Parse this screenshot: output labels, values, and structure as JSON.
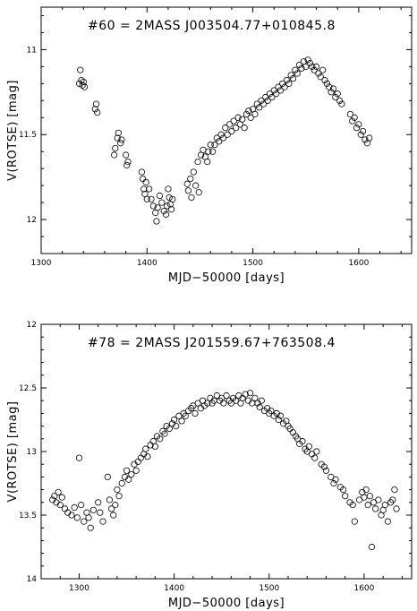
{
  "chart_data": [
    {
      "type": "scatter",
      "title": "#60  =  2MASS  J003504.77+010845.8",
      "xlabel": "MJD−50000  [days]",
      "ylabel": "V(ROTSE)  [mag]",
      "xlim": [
        1300,
        1650
      ],
      "ylim": [
        12.2,
        10.75
      ],
      "y_inverted": true,
      "xticks": [
        1300,
        1400,
        1500,
        1600
      ],
      "yticks": [
        11,
        11.5,
        12
      ],
      "ytick_labels": [
        "11",
        "11.5",
        "12"
      ],
      "marker": "open-circle",
      "points": [
        [
          1336,
          11.2
        ],
        [
          1337,
          11.12
        ],
        [
          1338,
          11.18
        ],
        [
          1339,
          11.21
        ],
        [
          1340,
          11.19
        ],
        [
          1341,
          11.22
        ],
        [
          1351,
          11.35
        ],
        [
          1352,
          11.32
        ],
        [
          1353,
          11.37
        ],
        [
          1369,
          11.62
        ],
        [
          1370,
          11.58
        ],
        [
          1372,
          11.52
        ],
        [
          1373,
          11.49
        ],
        [
          1375,
          11.55
        ],
        [
          1376,
          11.53
        ],
        [
          1380,
          11.62
        ],
        [
          1381,
          11.68
        ],
        [
          1382,
          11.66
        ],
        [
          1395,
          11.72
        ],
        [
          1396,
          11.76
        ],
        [
          1397,
          11.82
        ],
        [
          1398,
          11.85
        ],
        [
          1399,
          11.78
        ],
        [
          1400,
          11.88
        ],
        [
          1402,
          11.82
        ],
        [
          1404,
          11.88
        ],
        [
          1406,
          11.92
        ],
        [
          1408,
          11.96
        ],
        [
          1409,
          12.01
        ],
        [
          1410,
          11.93
        ],
        [
          1412,
          11.86
        ],
        [
          1414,
          11.9
        ],
        [
          1416,
          11.95
        ],
        [
          1418,
          11.97
        ],
        [
          1419,
          11.92
        ],
        [
          1420,
          11.82
        ],
        [
          1421,
          11.87
        ],
        [
          1422,
          11.91
        ],
        [
          1423,
          11.94
        ],
        [
          1424,
          11.88
        ],
        [
          1438,
          11.79
        ],
        [
          1439,
          11.83
        ],
        [
          1441,
          11.76
        ],
        [
          1442,
          11.87
        ],
        [
          1444,
          11.72
        ],
        [
          1446,
          11.8
        ],
        [
          1448,
          11.66
        ],
        [
          1449,
          11.84
        ],
        [
          1451,
          11.62
        ],
        [
          1453,
          11.59
        ],
        [
          1455,
          11.63
        ],
        [
          1457,
          11.66
        ],
        [
          1458,
          11.6
        ],
        [
          1460,
          11.56
        ],
        [
          1462,
          11.6
        ],
        [
          1464,
          11.56
        ],
        [
          1466,
          11.52
        ],
        [
          1468,
          11.54
        ],
        [
          1470,
          11.5
        ],
        [
          1472,
          11.52
        ],
        [
          1474,
          11.46
        ],
        [
          1476,
          11.5
        ],
        [
          1478,
          11.44
        ],
        [
          1480,
          11.48
        ],
        [
          1482,
          11.42
        ],
        [
          1484,
          11.46
        ],
        [
          1486,
          11.4
        ],
        [
          1488,
          11.44
        ],
        [
          1490,
          11.41
        ],
        [
          1492,
          11.46
        ],
        [
          1494,
          11.38
        ],
        [
          1496,
          11.36
        ],
        [
          1498,
          11.4
        ],
        [
          1500,
          11.35
        ],
        [
          1502,
          11.38
        ],
        [
          1504,
          11.32
        ],
        [
          1506,
          11.34
        ],
        [
          1508,
          11.3
        ],
        [
          1510,
          11.32
        ],
        [
          1512,
          11.28
        ],
        [
          1514,
          11.3
        ],
        [
          1516,
          11.26
        ],
        [
          1518,
          11.28
        ],
        [
          1520,
          11.24
        ],
        [
          1522,
          11.26
        ],
        [
          1524,
          11.22
        ],
        [
          1526,
          11.24
        ],
        [
          1528,
          11.2
        ],
        [
          1530,
          11.22
        ],
        [
          1532,
          11.18
        ],
        [
          1534,
          11.2
        ],
        [
          1536,
          11.15
        ],
        [
          1538,
          11.17
        ],
        [
          1540,
          11.12
        ],
        [
          1542,
          11.14
        ],
        [
          1544,
          11.09
        ],
        [
          1546,
          11.11
        ],
        [
          1548,
          11.07
        ],
        [
          1550,
          11.1
        ],
        [
          1552,
          11.06
        ],
        [
          1554,
          11.08
        ],
        [
          1556,
          11.1
        ],
        [
          1558,
          11.12
        ],
        [
          1560,
          11.1
        ],
        [
          1562,
          11.14
        ],
        [
          1564,
          11.16
        ],
        [
          1566,
          11.12
        ],
        [
          1568,
          11.18
        ],
        [
          1570,
          11.2
        ],
        [
          1572,
          11.22
        ],
        [
          1574,
          11.25
        ],
        [
          1576,
          11.23
        ],
        [
          1578,
          11.28
        ],
        [
          1580,
          11.26
        ],
        [
          1582,
          11.3
        ],
        [
          1584,
          11.32
        ],
        [
          1592,
          11.38
        ],
        [
          1594,
          11.42
        ],
        [
          1596,
          11.4
        ],
        [
          1598,
          11.46
        ],
        [
          1600,
          11.44
        ],
        [
          1602,
          11.5
        ],
        [
          1604,
          11.48
        ],
        [
          1606,
          11.53
        ],
        [
          1608,
          11.55
        ],
        [
          1610,
          11.52
        ]
      ]
    },
    {
      "type": "scatter",
      "title": "#78  =  2MASS  J201559.67+763508.4",
      "xlabel": "MJD−50000  [days]",
      "ylabel": "V(ROTSE)  [mag]",
      "xlim": [
        1260,
        1650
      ],
      "ylim": [
        14,
        12
      ],
      "y_inverted": true,
      "xticks": [
        1300,
        1400,
        1500,
        1600
      ],
      "yticks": [
        12,
        12.5,
        13,
        13.5,
        14
      ],
      "ytick_labels": [
        "12",
        "12.5",
        "13",
        "13.5",
        "14"
      ],
      "marker": "open-circle",
      "points": [
        [
          1272,
          13.38
        ],
        [
          1274,
          13.35
        ],
        [
          1276,
          13.4
        ],
        [
          1278,
          13.32
        ],
        [
          1280,
          13.42
        ],
        [
          1282,
          13.36
        ],
        [
          1285,
          13.45
        ],
        [
          1288,
          13.48
        ],
        [
          1292,
          13.5
        ],
        [
          1295,
          13.44
        ],
        [
          1298,
          13.52
        ],
        [
          1300,
          13.05
        ],
        [
          1302,
          13.42
        ],
        [
          1305,
          13.55
        ],
        [
          1308,
          13.48
        ],
        [
          1310,
          13.52
        ],
        [
          1312,
          13.6
        ],
        [
          1315,
          13.46
        ],
        [
          1320,
          13.4
        ],
        [
          1322,
          13.48
        ],
        [
          1325,
          13.55
        ],
        [
          1330,
          13.2
        ],
        [
          1332,
          13.38
        ],
        [
          1334,
          13.45
        ],
        [
          1336,
          13.5
        ],
        [
          1338,
          13.42
        ],
        [
          1340,
          13.3
        ],
        [
          1342,
          13.35
        ],
        [
          1345,
          13.25
        ],
        [
          1348,
          13.2
        ],
        [
          1350,
          13.15
        ],
        [
          1352,
          13.22
        ],
        [
          1355,
          13.18
        ],
        [
          1358,
          13.1
        ],
        [
          1360,
          13.15
        ],
        [
          1362,
          13.08
        ],
        [
          1365,
          13.05
        ],
        [
          1368,
          13.02
        ],
        [
          1370,
          12.98
        ],
        [
          1372,
          13.04
        ],
        [
          1375,
          12.95
        ],
        [
          1378,
          12.92
        ],
        [
          1380,
          12.96
        ],
        [
          1382,
          12.88
        ],
        [
          1385,
          12.9
        ],
        [
          1388,
          12.84
        ],
        [
          1390,
          12.86
        ],
        [
          1392,
          12.8
        ],
        [
          1395,
          12.82
        ],
        [
          1398,
          12.78
        ],
        [
          1400,
          12.75
        ],
        [
          1402,
          12.8
        ],
        [
          1405,
          12.72
        ],
        [
          1408,
          12.76
        ],
        [
          1410,
          12.7
        ],
        [
          1412,
          12.72
        ],
        [
          1415,
          12.68
        ],
        [
          1418,
          12.66
        ],
        [
          1420,
          12.64
        ],
        [
          1422,
          12.7
        ],
        [
          1425,
          12.62
        ],
        [
          1428,
          12.66
        ],
        [
          1430,
          12.6
        ],
        [
          1432,
          12.64
        ],
        [
          1435,
          12.62
        ],
        [
          1438,
          12.58
        ],
        [
          1440,
          12.62
        ],
        [
          1442,
          12.6
        ],
        [
          1445,
          12.56
        ],
        [
          1448,
          12.6
        ],
        [
          1450,
          12.58
        ],
        [
          1452,
          12.62
        ],
        [
          1455,
          12.56
        ],
        [
          1458,
          12.6
        ],
        [
          1460,
          12.62
        ],
        [
          1462,
          12.58
        ],
        [
          1465,
          12.6
        ],
        [
          1468,
          12.56
        ],
        [
          1470,
          12.62
        ],
        [
          1472,
          12.58
        ],
        [
          1475,
          12.55
        ],
        [
          1478,
          12.6
        ],
        [
          1480,
          12.54
        ],
        [
          1482,
          12.62
        ],
        [
          1485,
          12.58
        ],
        [
          1488,
          12.62
        ],
        [
          1490,
          12.65
        ],
        [
          1492,
          12.6
        ],
        [
          1495,
          12.68
        ],
        [
          1498,
          12.66
        ],
        [
          1500,
          12.7
        ],
        [
          1502,
          12.68
        ],
        [
          1505,
          12.72
        ],
        [
          1508,
          12.7
        ],
        [
          1510,
          12.75
        ],
        [
          1512,
          12.72
        ],
        [
          1515,
          12.78
        ],
        [
          1518,
          12.76
        ],
        [
          1520,
          12.8
        ],
        [
          1522,
          12.82
        ],
        [
          1525,
          12.85
        ],
        [
          1528,
          12.88
        ],
        [
          1530,
          12.9
        ],
        [
          1532,
          12.94
        ],
        [
          1535,
          12.92
        ],
        [
          1538,
          12.98
        ],
        [
          1540,
          13.0
        ],
        [
          1542,
          12.96
        ],
        [
          1545,
          13.02
        ],
        [
          1548,
          13.05
        ],
        [
          1550,
          13.0
        ],
        [
          1555,
          13.1
        ],
        [
          1558,
          13.12
        ],
        [
          1560,
          13.15
        ],
        [
          1565,
          13.2
        ],
        [
          1568,
          13.25
        ],
        [
          1570,
          13.22
        ],
        [
          1575,
          13.28
        ],
        [
          1578,
          13.3
        ],
        [
          1580,
          13.35
        ],
        [
          1585,
          13.4
        ],
        [
          1588,
          13.42
        ],
        [
          1590,
          13.55
        ],
        [
          1595,
          13.38
        ],
        [
          1598,
          13.32
        ],
        [
          1600,
          13.36
        ],
        [
          1602,
          13.3
        ],
        [
          1604,
          13.42
        ],
        [
          1606,
          13.35
        ],
        [
          1608,
          13.75
        ],
        [
          1610,
          13.4
        ],
        [
          1612,
          13.45
        ],
        [
          1615,
          13.38
        ],
        [
          1618,
          13.5
        ],
        [
          1620,
          13.46
        ],
        [
          1622,
          13.42
        ],
        [
          1625,
          13.55
        ],
        [
          1628,
          13.4
        ],
        [
          1630,
          13.38
        ],
        [
          1632,
          13.3
        ],
        [
          1634,
          13.45
        ]
      ]
    }
  ]
}
